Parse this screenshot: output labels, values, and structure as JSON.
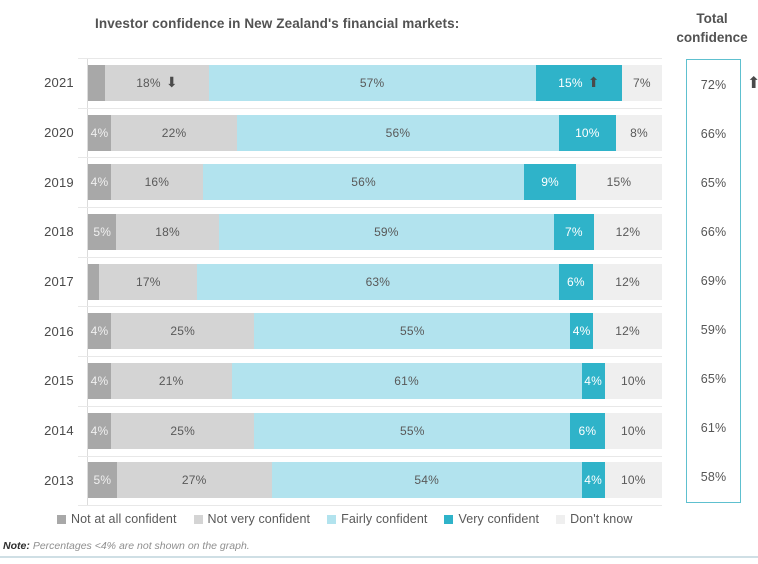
{
  "title": "Investor confidence in New Zealand's financial markets:",
  "total_header": {
    "line1": "Total",
    "line2": "confidence"
  },
  "note": {
    "label": "Note:",
    "text": "Percentages <4% are not shown on the graph."
  },
  "icons": {
    "up_arrow": "⬆",
    "down_arrow": "⬇"
  },
  "colors": {
    "accent_teal": "#2fb3c9",
    "box_border": "#5ec0cf",
    "hairline": "#e8e8e8",
    "axis_line": "#dcdcdc",
    "text_dark": "#525252",
    "arrow": "#4a4a4a",
    "footer_line": "#cfdfe5"
  },
  "chart_data": {
    "type": "bar",
    "stacked": true,
    "orientation": "horizontal",
    "title": "Investor confidence in New Zealand's financial markets:",
    "label_rule": "segment percentage labels hidden when value < 4",
    "categories": [
      "2021",
      "2020",
      "2019",
      "2018",
      "2017",
      "2016",
      "2015",
      "2014",
      "2013"
    ],
    "series": [
      {
        "key": "not_at_all",
        "name": "Not at all confident",
        "color": "#a8a8a8",
        "text_color": "#f0f0f0",
        "values": [
          3,
          4,
          4,
          5,
          2,
          4,
          4,
          4,
          5
        ]
      },
      {
        "key": "not_very",
        "name": "Not very confident",
        "color": "#d4d4d4",
        "text_color": "#595959",
        "values": [
          18,
          22,
          16,
          18,
          17,
          25,
          21,
          25,
          27
        ]
      },
      {
        "key": "fairly",
        "name": "Fairly confident",
        "color": "#b2e3ee",
        "text_color": "#595959",
        "values": [
          57,
          56,
          56,
          59,
          63,
          55,
          61,
          55,
          54
        ]
      },
      {
        "key": "very",
        "name": "Very confident",
        "color": "#2fb3c9",
        "text_color": "#ffffff",
        "values": [
          15,
          10,
          9,
          7,
          6,
          4,
          4,
          6,
          4
        ]
      },
      {
        "key": "dont_know",
        "name": "Don't know",
        "color": "#efefef",
        "text_color": "#595959",
        "values": [
          7,
          8,
          15,
          12,
          12,
          12,
          10,
          10,
          10
        ]
      }
    ],
    "arrows": {
      "2021": {
        "not_very": "down",
        "very": "up"
      }
    },
    "totals": {
      "label": "Total confidence",
      "values": [
        72,
        66,
        65,
        66,
        69,
        59,
        65,
        61,
        58
      ],
      "arrows": {
        "2021": "up"
      }
    },
    "legend_position": "bottom",
    "axis": {
      "x_range_percent": [
        0,
        100
      ],
      "gridlines": "row separators only"
    }
  }
}
